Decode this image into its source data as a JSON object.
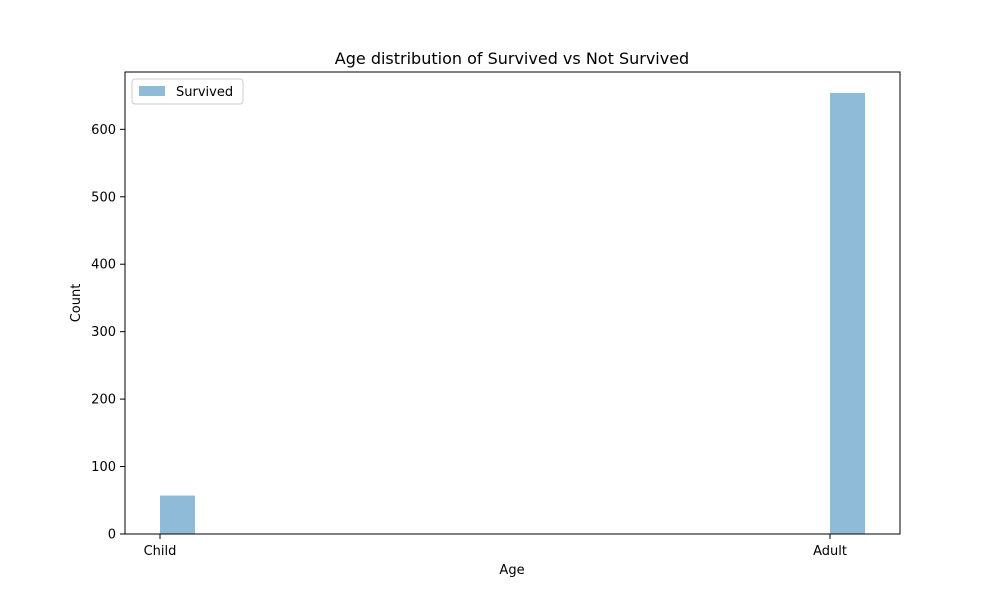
{
  "chart_data": {
    "type": "bar",
    "title": "Age distribution of Survived vs Not Survived",
    "xlabel": "Age",
    "ylabel": "Count",
    "categories": [
      "Child",
      "Adult"
    ],
    "series": [
      {
        "name": "Survived",
        "values": [
          57,
          654
        ],
        "color": "#8fbbd9"
      }
    ],
    "ylim": [
      0,
      685
    ],
    "yticks": [
      0,
      100,
      200,
      300,
      400,
      500,
      600
    ],
    "grid": false,
    "legend": "top-left"
  }
}
